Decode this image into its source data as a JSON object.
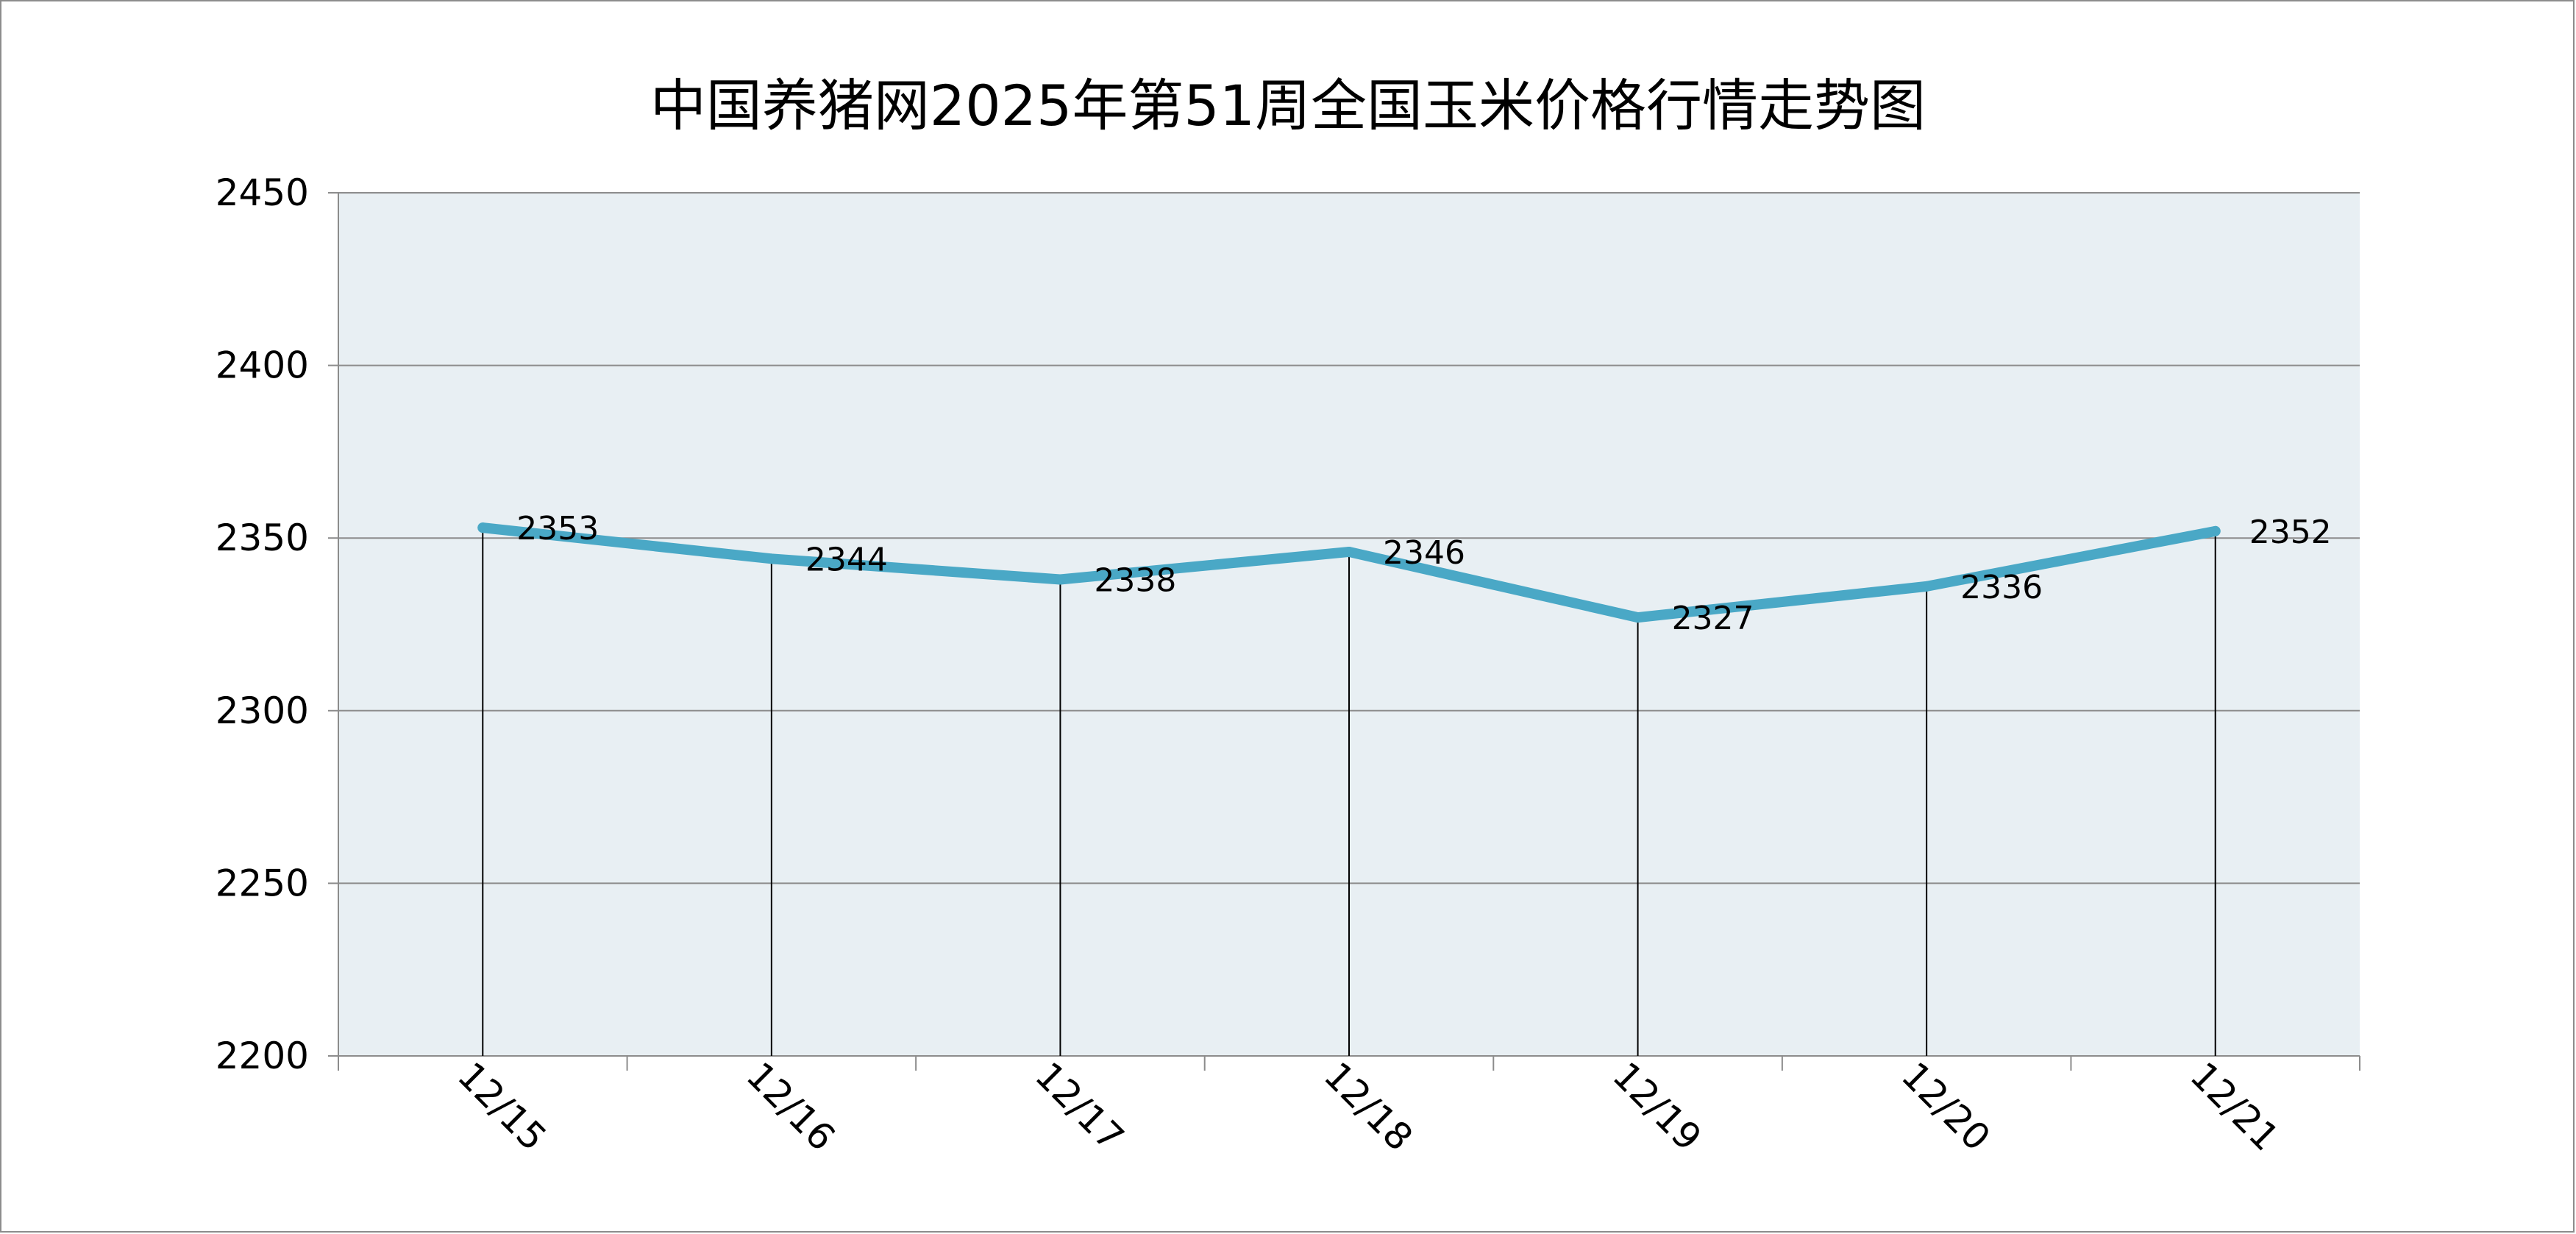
{
  "chart_data": {
    "type": "line",
    "title": "中国养猪网2025年第51周全国玉米价格行情走势图",
    "xlabel": "",
    "ylabel": "",
    "categories": [
      "12/15",
      "12/16",
      "12/17",
      "12/18",
      "12/19",
      "12/20",
      "12/21"
    ],
    "series": [
      {
        "values": [
          2353,
          2344,
          2338,
          2346,
          2327,
          2336,
          2352
        ]
      }
    ],
    "data_labels": [
      "2353",
      "2344",
      "2338",
      "2346",
      "2327",
      "2336",
      "2352"
    ],
    "ylim": [
      2200,
      2450
    ],
    "yticks": [
      2200,
      2250,
      2300,
      2350,
      2400,
      2450
    ],
    "ytick_labels": [
      "2200",
      "2250",
      "2300",
      "2350",
      "2400",
      "2450"
    ],
    "grid": true,
    "drop_lines": true,
    "legend": "none",
    "colors": {
      "line": "#4aa8c6",
      "plot_background": "#e8eff3",
      "gridline": "#8c8c8c",
      "axis": "#8c8c8c",
      "drop_line": "#000000",
      "frame": "#8c8c8c"
    }
  }
}
